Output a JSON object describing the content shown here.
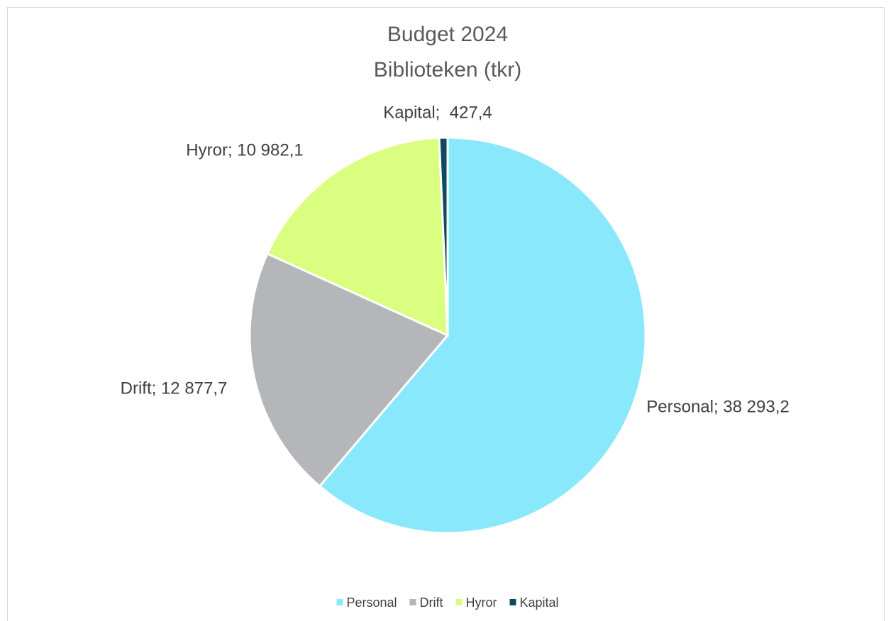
{
  "chart_data": {
    "type": "pie",
    "title": "Budget 2024",
    "subtitle": "Biblioteken (tkr)",
    "categories": [
      "Personal",
      "Drift",
      "Hyror",
      "Kapital"
    ],
    "values": [
      38293.2,
      12877.7,
      10982.1,
      427.4
    ],
    "value_labels": [
      "Personal; 38 293,2",
      "Drift; 12 877,7",
      "Hyror; 10 982,1",
      "Kapital;  427,4"
    ],
    "colors": [
      "#8ae8fc",
      "#b5b6b9",
      "#d9fe80",
      "#0d4a5e"
    ],
    "legend": "bottom"
  }
}
